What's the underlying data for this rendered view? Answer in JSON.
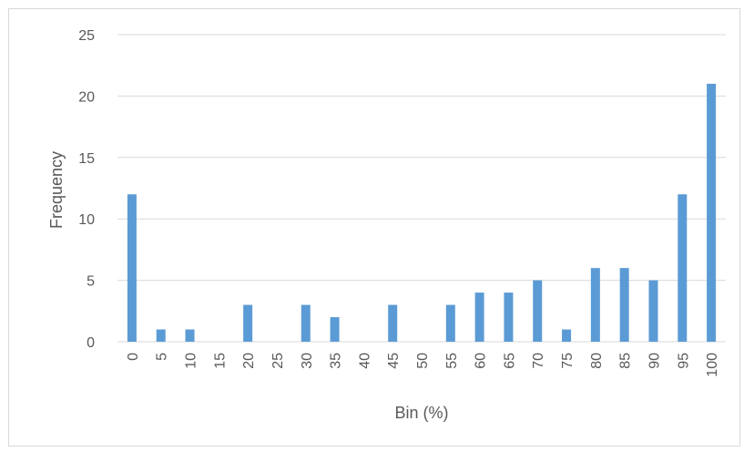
{
  "chart_data": {
    "type": "bar",
    "title": "",
    "xlabel": "Bin (%)",
    "ylabel": "Frequency",
    "ylim": [
      0,
      25
    ],
    "yticks": [
      0,
      5,
      10,
      15,
      20,
      25
    ],
    "grid": true,
    "legend": "none",
    "bar_color": "#5b9bd5",
    "grid_color": "#d9d9d9",
    "categories": [
      "0",
      "5",
      "10",
      "15",
      "20",
      "25",
      "30",
      "35",
      "40",
      "45",
      "50",
      "55",
      "60",
      "65",
      "70",
      "75",
      "80",
      "85",
      "90",
      "95",
      "100"
    ],
    "values": [
      12,
      1,
      1,
      0,
      3,
      0,
      3,
      2,
      0,
      3,
      0,
      3,
      4,
      4,
      5,
      1,
      6,
      6,
      5,
      12,
      21
    ]
  }
}
